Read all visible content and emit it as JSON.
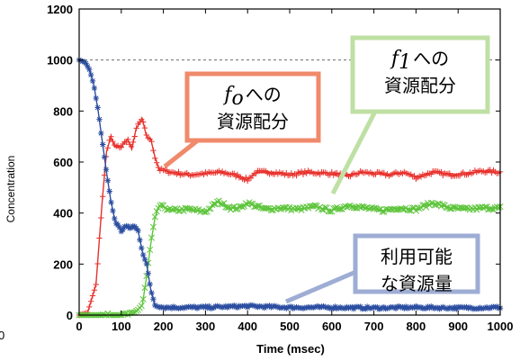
{
  "chart_data": {
    "type": "scatter",
    "xlabel": "Time (msec)",
    "ylabel": "Concentration",
    "xlim": [
      0,
      1000
    ],
    "ylim": [
      0,
      1200
    ],
    "x_ticks": [
      "0",
      "100",
      "200",
      "300",
      "400",
      "500",
      "600",
      "700",
      "800",
      "900",
      "1000"
    ],
    "y_ticks": [
      "0",
      "200",
      "400",
      "600",
      "800",
      "1000",
      "1200"
    ],
    "reference_line": {
      "y": 1000,
      "style": "dashed"
    },
    "colors": {
      "f0": "#e8312c",
      "f1": "#5cc43a",
      "available": "#2c4ea0"
    },
    "series": [
      {
        "key": "f0",
        "marker": "plus",
        "points": [
          [
            0,
            0
          ],
          [
            20,
            10
          ],
          [
            40,
            120
          ],
          [
            55,
            450
          ],
          [
            65,
            640
          ],
          [
            75,
            700
          ],
          [
            85,
            660
          ],
          [
            100,
            660
          ],
          [
            115,
            690
          ],
          [
            125,
            650
          ],
          [
            135,
            730
          ],
          [
            150,
            770
          ],
          [
            160,
            700
          ],
          [
            170,
            690
          ],
          [
            180,
            620
          ],
          [
            190,
            570
          ],
          [
            220,
            560
          ],
          [
            260,
            550
          ],
          [
            300,
            555
          ],
          [
            340,
            560
          ],
          [
            380,
            545
          ],
          [
            400,
            530
          ],
          [
            420,
            560
          ],
          [
            460,
            560
          ],
          [
            500,
            550
          ],
          [
            540,
            560
          ],
          [
            600,
            555
          ],
          [
            640,
            545
          ],
          [
            670,
            560
          ],
          [
            700,
            555
          ],
          [
            740,
            550
          ],
          [
            770,
            560
          ],
          [
            800,
            540
          ],
          [
            840,
            560
          ],
          [
            880,
            550
          ],
          [
            920,
            555
          ],
          [
            960,
            565
          ],
          [
            1000,
            560
          ]
        ]
      },
      {
        "key": "f1",
        "marker": "x",
        "points": [
          [
            0,
            0
          ],
          [
            100,
            0
          ],
          [
            130,
            5
          ],
          [
            150,
            40
          ],
          [
            160,
            150
          ],
          [
            170,
            280
          ],
          [
            180,
            380
          ],
          [
            190,
            430
          ],
          [
            220,
            410
          ],
          [
            260,
            415
          ],
          [
            300,
            405
          ],
          [
            330,
            445
          ],
          [
            360,
            420
          ],
          [
            380,
            420
          ],
          [
            400,
            440
          ],
          [
            440,
            415
          ],
          [
            480,
            420
          ],
          [
            520,
            415
          ],
          [
            560,
            425
          ],
          [
            600,
            410
          ],
          [
            640,
            430
          ],
          [
            680,
            420
          ],
          [
            720,
            410
          ],
          [
            760,
            420
          ],
          [
            800,
            415
          ],
          [
            840,
            440
          ],
          [
            880,
            420
          ],
          [
            920,
            415
          ],
          [
            960,
            420
          ],
          [
            1000,
            420
          ]
        ]
      },
      {
        "key": "available",
        "marker": "star",
        "points": [
          [
            0,
            1000
          ],
          [
            15,
            990
          ],
          [
            25,
            960
          ],
          [
            35,
            900
          ],
          [
            45,
            800
          ],
          [
            55,
            680
          ],
          [
            65,
            560
          ],
          [
            75,
            450
          ],
          [
            85,
            370
          ],
          [
            100,
            330
          ],
          [
            110,
            350
          ],
          [
            120,
            340
          ],
          [
            130,
            350
          ],
          [
            140,
            330
          ],
          [
            150,
            250
          ],
          [
            160,
            200
          ],
          [
            170,
            100
          ],
          [
            180,
            40
          ],
          [
            200,
            30
          ],
          [
            300,
            30
          ],
          [
            400,
            35
          ],
          [
            500,
            30
          ],
          [
            600,
            30
          ],
          [
            700,
            28
          ],
          [
            800,
            30
          ],
          [
            900,
            28
          ],
          [
            1000,
            30
          ]
        ]
      }
    ],
    "annotations": [
      {
        "key": "f0",
        "lines": [
          [
            "f",
            "o",
            "への"
          ],
          [
            "資源配分"
          ]
        ]
      },
      {
        "key": "f1",
        "lines": [
          [
            "f",
            "1",
            "への"
          ],
          [
            "資源配分"
          ]
        ]
      },
      {
        "key": "available",
        "lines": [
          [
            "利用可能"
          ],
          [
            "な資源量"
          ]
        ]
      }
    ]
  },
  "outside_label": "0"
}
